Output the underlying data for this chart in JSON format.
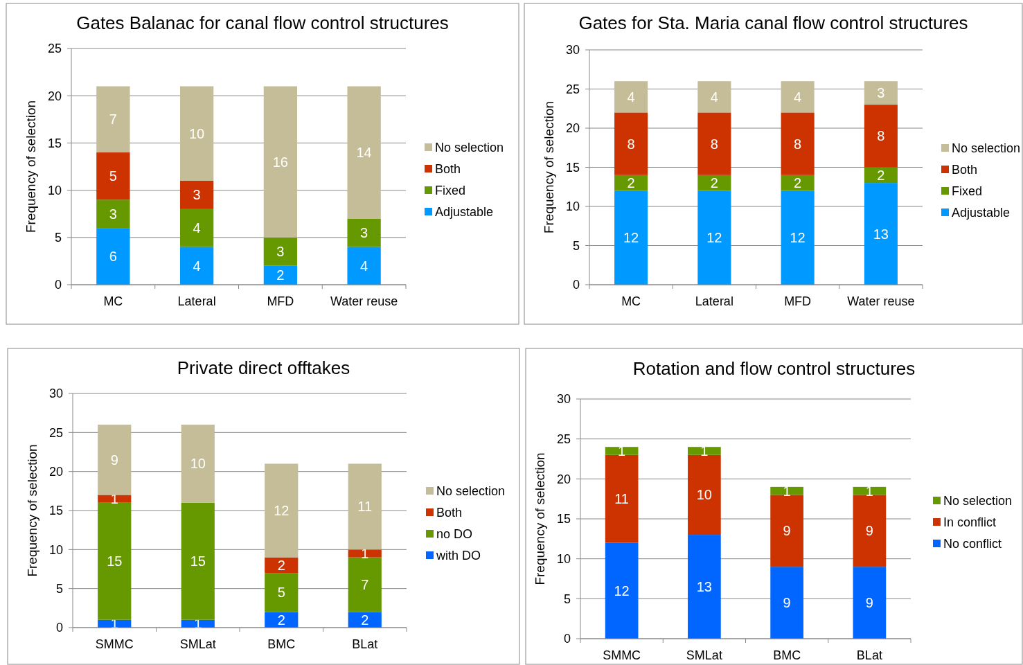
{
  "chart_data": [
    {
      "type": "bar",
      "title": "Gates Balanac for canal flow control structures",
      "ylabel": "Frequency of selection",
      "categories": [
        "MC",
        "Lateral",
        "MFD",
        "Water reuse"
      ],
      "stacked": true,
      "data_labels": true,
      "grid": "y",
      "legend": "right",
      "ylim": [
        0,
        25
      ],
      "yticks": [
        0,
        5,
        10,
        15,
        20,
        25
      ],
      "series": [
        {
          "name": "Adjustable",
          "color": "#0099ff",
          "values": [
            6,
            4,
            2,
            4
          ]
        },
        {
          "name": "Fixed",
          "color": "#669900",
          "values": [
            3,
            4,
            3,
            3
          ]
        },
        {
          "name": "Both",
          "color": "#cc3300",
          "values": [
            5,
            3,
            null,
            null
          ]
        },
        {
          "name": "No selection",
          "color": "#c4bd97",
          "values": [
            7,
            10,
            16,
            14
          ]
        }
      ]
    },
    {
      "type": "bar",
      "title": "Gates for Sta. Maria canal flow control structures",
      "ylabel": "Frequency of selection",
      "categories": [
        "MC",
        "Lateral",
        "MFD",
        "Water reuse"
      ],
      "stacked": true,
      "data_labels": true,
      "grid": "y",
      "legend": "right",
      "ylim": [
        0,
        30
      ],
      "yticks": [
        0,
        5,
        10,
        15,
        20,
        25,
        30
      ],
      "series": [
        {
          "name": "Adjustable",
          "color": "#0099ff",
          "values": [
            12,
            12,
            12,
            13
          ]
        },
        {
          "name": "Fixed",
          "color": "#669900",
          "values": [
            2,
            2,
            2,
            2
          ]
        },
        {
          "name": "Both",
          "color": "#cc3300",
          "values": [
            8,
            8,
            8,
            8
          ]
        },
        {
          "name": "No selection",
          "color": "#c4bd97",
          "values": [
            4,
            4,
            4,
            3
          ]
        }
      ]
    },
    {
      "type": "bar",
      "title": "Private direct offtakes",
      "ylabel": "Frequency of selection",
      "categories": [
        "SMMC",
        "SMLat",
        "BMC",
        "BLat"
      ],
      "stacked": true,
      "data_labels": true,
      "grid": "y",
      "legend": "right",
      "ylim": [
        0,
        30
      ],
      "yticks": [
        0,
        5,
        10,
        15,
        20,
        25,
        30
      ],
      "series": [
        {
          "name": "with DO",
          "color": "#0066ff",
          "values": [
            1,
            1,
            2,
            2
          ]
        },
        {
          "name": "no DO",
          "color": "#669900",
          "values": [
            15,
            15,
            5,
            7
          ]
        },
        {
          "name": "Both",
          "color": "#cc3300",
          "values": [
            1,
            null,
            2,
            1
          ]
        },
        {
          "name": "No selection",
          "color": "#c4bd97",
          "values": [
            9,
            10,
            12,
            11
          ]
        }
      ]
    },
    {
      "type": "bar",
      "title": "Rotation and flow control structures",
      "ylabel": "Frequency of selection",
      "categories": [
        "SMMC",
        "SMLat",
        "BMC",
        "BLat"
      ],
      "stacked": true,
      "data_labels": true,
      "grid": "y",
      "legend": "right",
      "ylim": [
        0,
        30
      ],
      "yticks": [
        0,
        5,
        10,
        15,
        20,
        25,
        30
      ],
      "series": [
        {
          "name": "No conflict",
          "color": "#0066ff",
          "values": [
            12,
            13,
            9,
            9
          ]
        },
        {
          "name": "In conflict",
          "color": "#cc3300",
          "values": [
            11,
            10,
            9,
            9
          ]
        },
        {
          "name": "No selection",
          "color": "#669900",
          "values": [
            1,
            1,
            1,
            1
          ]
        }
      ]
    }
  ]
}
